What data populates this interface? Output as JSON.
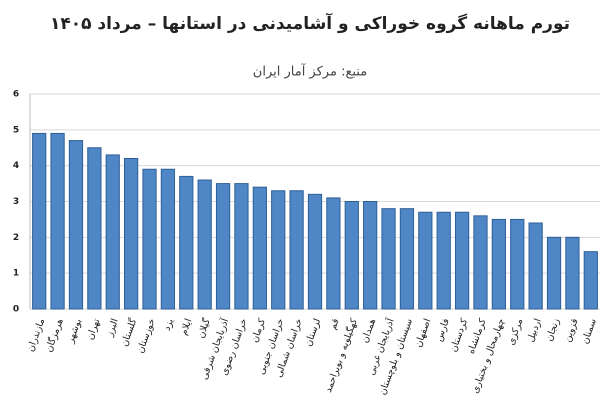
{
  "chart_data": {
    "type": "bar",
    "title": "تورم ماهانه گروه خوراکی و آشامیدنی در  استانها – مرداد ۱۴۰۵",
    "subtitle": "منبع: مرکز آمار ایران",
    "categories": [
      "مازندران",
      "هرمزگان",
      "بوشهر",
      "تهران",
      "البرز",
      "گلستان",
      "خوزستان",
      "یزد",
      "ایلام",
      "گیلان",
      "آذربایجان شرقی",
      "خراسان رضوی",
      "کرمان",
      "خراسان جنوبی",
      "خراسان شمالی",
      "لرستان",
      "قم",
      "کهگیلویه و بویراحمد",
      "همدان",
      "آذربایجان غربی",
      "سیستان و بلوچستان",
      "اصفهان",
      "فارس",
      "کردستان",
      "کرمانشاه",
      "چهارمحال و بختیاری",
      "مرکزی",
      "اردبیل",
      "زنجان",
      "قزوین",
      "سمنان"
    ],
    "values": [
      4.9,
      4.9,
      4.7,
      4.5,
      4.3,
      4.2,
      3.9,
      3.9,
      3.7,
      3.6,
      3.5,
      3.5,
      3.4,
      3.3,
      3.3,
      3.2,
      3.1,
      3.0,
      3.0,
      2.8,
      2.8,
      2.7,
      2.7,
      2.7,
      2.6,
      2.5,
      2.5,
      2.4,
      2.0,
      2.0,
      1.6
    ],
    "color": "#4f86c6",
    "ylim": [
      0,
      6
    ],
    "yticks": [
      0,
      1,
      2,
      3,
      4,
      5,
      6
    ],
    "grid": true
  }
}
